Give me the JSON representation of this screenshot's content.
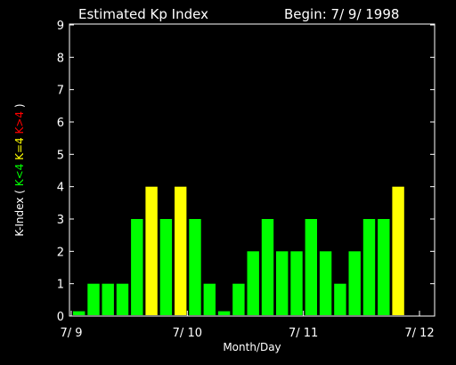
{
  "chart_data": {
    "type": "bar",
    "title": "Estimated Kp Index",
    "begin_label": "Begin: 7/ 9/ 1998",
    "xlabel": "Month/Day",
    "ylabel": {
      "prefix": "K-Index (",
      "low": "K<4",
      "mid": "K=4",
      "high": "K>4",
      "suffix": ")"
    },
    "ylim": [
      0,
      9
    ],
    "yticks": [
      "0",
      "1",
      "2",
      "3",
      "4",
      "5",
      "6",
      "7",
      "8",
      "9"
    ],
    "xticks": [
      "7/ 9",
      "7/ 10",
      "7/ 11",
      "7/ 12"
    ],
    "bars_per_day": 8,
    "values": [
      0.15,
      1,
      1,
      1,
      3,
      4,
      3,
      4,
      3,
      1,
      0.15,
      1,
      2,
      3,
      2,
      2,
      3,
      2,
      1,
      2,
      3,
      3,
      4
    ],
    "colors": {
      "low": "#00ff00",
      "mid": "#ffff00",
      "high": "#ff0000"
    }
  }
}
